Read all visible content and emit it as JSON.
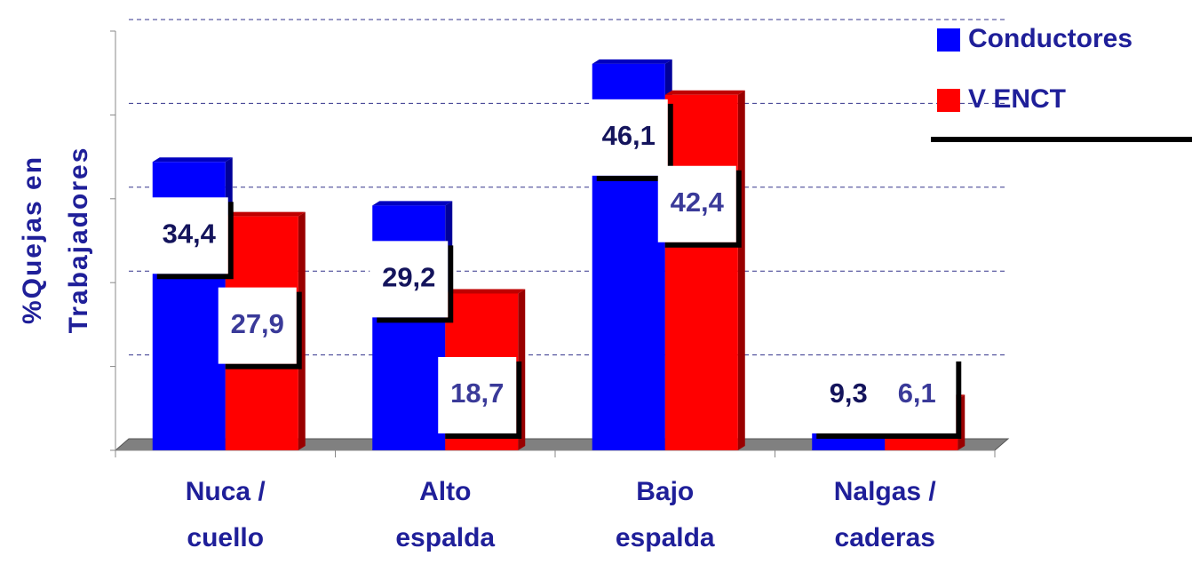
{
  "chart_data": {
    "type": "bar3d",
    "ylabel": [
      "%Quejas en",
      "Trabajadores"
    ],
    "categories": [
      [
        "Nuca /",
        "cuello"
      ],
      [
        "Alto",
        "espalda"
      ],
      [
        "Bajo",
        "espalda"
      ],
      [
        "Nalgas /",
        "caderas"
      ]
    ],
    "series": [
      {
        "name": "Conductores",
        "color": "#0000ff",
        "values": [
          34.4,
          29.2,
          46.1,
          9.3
        ],
        "value_labels": [
          "34,4",
          "29,2",
          "46,1",
          "9,3"
        ]
      },
      {
        "name": "V ENCT",
        "color": "#ff0000",
        "values": [
          27.9,
          18.7,
          42.4,
          6.1
        ],
        "value_labels": [
          "27,9",
          "18,7",
          "42,4",
          "6,1"
        ]
      }
    ],
    "ylim": [
      0,
      50
    ],
    "yticks": [
      0,
      10,
      20,
      30,
      40,
      50
    ],
    "grid": true,
    "legend": "top-right"
  }
}
